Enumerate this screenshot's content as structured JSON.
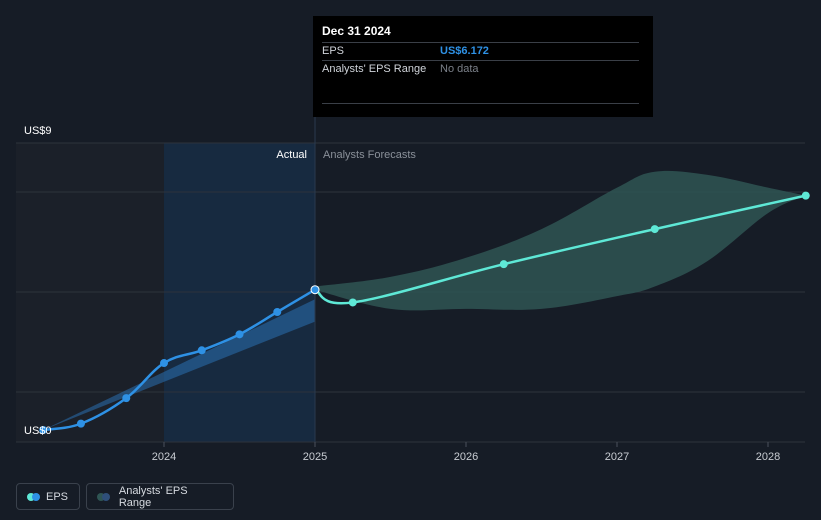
{
  "chart_data": {
    "type": "line",
    "title": "",
    "ylabel": "",
    "y_axis": {
      "top_label": "US$9",
      "bottom_label": "US$0",
      "ylim": [
        0,
        9
      ]
    },
    "x_axis": {
      "ticks": [
        "2024",
        "2025",
        "2026",
        "2027",
        "2028"
      ],
      "xlim": [
        2023.0,
        2028.25
      ]
    },
    "sections": {
      "actual_label": "Actual",
      "forecast_label": "Analysts Forecasts",
      "divider_x": 2025.0
    },
    "series": [
      {
        "name": "EPS",
        "kind": "actual",
        "color": "#2e91e5",
        "x": [
          2023.2,
          2023.45,
          2023.75,
          2024.0,
          2024.25,
          2024.5,
          2024.75,
          2025.0
        ],
        "values": [
          0.0,
          0.2,
          1.0,
          2.1,
          2.5,
          3.0,
          3.7,
          4.4
        ]
      },
      {
        "name": "EPS forecast",
        "kind": "forecast",
        "color": "#5ee8d6",
        "x": [
          2025.0,
          2025.25,
          2026.25,
          2027.25,
          2028.25
        ],
        "values": [
          4.4,
          4.0,
          5.2,
          6.3,
          7.35
        ]
      }
    ],
    "actual_band": {
      "x": [
        2023.2,
        2025.0
      ],
      "low": [
        0.0,
        3.4
      ],
      "high": [
        0.0,
        4.1
      ]
    },
    "forecast_range": {
      "x": [
        2025.0,
        2025.5,
        2026.0,
        2026.5,
        2027.0,
        2027.25,
        2027.6,
        2028.0,
        2028.25
      ],
      "high": [
        4.5,
        4.8,
        5.4,
        6.3,
        7.6,
        8.1,
        8.0,
        7.6,
        7.35
      ],
      "low": [
        4.4,
        3.8,
        3.8,
        3.8,
        4.2,
        4.5,
        5.3,
        6.8,
        7.35
      ]
    },
    "tooltip": {
      "date": "Dec 31 2024",
      "rows": [
        {
          "label": "EPS",
          "value": "US$6.172"
        },
        {
          "label": "Analysts' EPS Range",
          "value": "No data"
        }
      ]
    },
    "legend": {
      "eps_label": "EPS",
      "range_label": "Analysts' EPS Range"
    },
    "colors": {
      "background": "#161c26",
      "past_shade": "#1b2029",
      "actual_highlight": "#172d45",
      "gridline": "#2d333c",
      "eps": "#2e91e5",
      "forecast": "#5ee8d6",
      "range_fill": "#2f5554"
    },
    "grid": true
  }
}
